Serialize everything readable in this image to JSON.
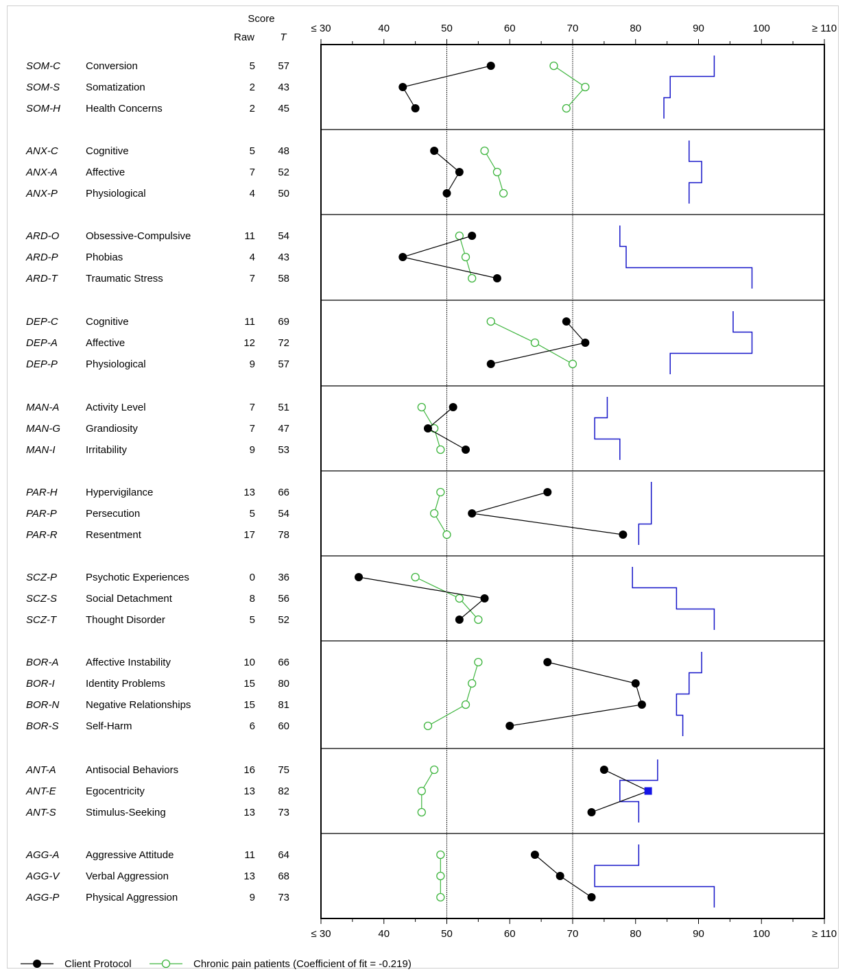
{
  "chart_data": {
    "type": "line",
    "header": {
      "score": "Score",
      "raw": "Raw",
      "t": "T"
    },
    "x_axis": {
      "min": 30,
      "max": 110,
      "ticks": [
        30,
        40,
        50,
        60,
        70,
        80,
        90,
        100,
        110
      ],
      "tick_labels": [
        "≤ 30",
        "40",
        "50",
        "60",
        "70",
        "80",
        "90",
        "100",
        "≥ 110"
      ],
      "reference_lines": [
        50,
        70
      ]
    },
    "groups": [
      {
        "rows": [
          {
            "code": "SOM-C",
            "label": "Conversion",
            "raw": "5",
            "t": 57,
            "pain": 67,
            "threshold": 92.5
          },
          {
            "code": "SOM-S",
            "label": "Somatization",
            "raw": "2",
            "t": 43,
            "pain": 72,
            "threshold": 85.5
          },
          {
            "code": "SOM-H",
            "label": "Health Concerns",
            "raw": "2",
            "t": 45,
            "pain": 69,
            "threshold": 84.5
          }
        ]
      },
      {
        "rows": [
          {
            "code": "ANX-C",
            "label": "Cognitive",
            "raw": "5",
            "t": 48,
            "pain": 56,
            "threshold": 88.5
          },
          {
            "code": "ANX-A",
            "label": "Affective",
            "raw": "7",
            "t": 52,
            "pain": 58,
            "threshold": 90.5
          },
          {
            "code": "ANX-P",
            "label": "Physiological",
            "raw": "4",
            "t": 50,
            "pain": 59,
            "threshold": 88.5
          }
        ]
      },
      {
        "rows": [
          {
            "code": "ARD-O",
            "label": "Obsessive-Compulsive",
            "raw": "11",
            "t": 54,
            "pain": 52,
            "threshold": 77.5
          },
          {
            "code": "ARD-P",
            "label": "Phobias",
            "raw": "4",
            "t": 43,
            "pain": 53,
            "threshold": 78.5
          },
          {
            "code": "ARD-T",
            "label": "Traumatic Stress",
            "raw": "7",
            "t": 58,
            "pain": 54,
            "threshold": 98.5
          }
        ]
      },
      {
        "rows": [
          {
            "code": "DEP-C",
            "label": "Cognitive",
            "raw": "11",
            "t": 69,
            "pain": 57,
            "threshold": 95.5
          },
          {
            "code": "DEP-A",
            "label": "Affective",
            "raw": "12",
            "t": 72,
            "pain": 64,
            "threshold": 98.5
          },
          {
            "code": "DEP-P",
            "label": "Physiological",
            "raw": "9",
            "t": 57,
            "pain": 70,
            "threshold": 85.5
          }
        ]
      },
      {
        "rows": [
          {
            "code": "MAN-A",
            "label": "Activity Level",
            "raw": "7",
            "t": 51,
            "pain": 46,
            "threshold": 75.5
          },
          {
            "code": "MAN-G",
            "label": "Grandiosity",
            "raw": "7",
            "t": 47,
            "pain": 48,
            "threshold": 73.5
          },
          {
            "code": "MAN-I",
            "label": "Irritability",
            "raw": "9",
            "t": 53,
            "pain": 49,
            "threshold": 77.5
          }
        ]
      },
      {
        "rows": [
          {
            "code": "PAR-H",
            "label": "Hypervigilance",
            "raw": "13",
            "t": 66,
            "pain": 49,
            "threshold": 82.5
          },
          {
            "code": "PAR-P",
            "label": "Persecution",
            "raw": "5",
            "t": 54,
            "pain": 48,
            "threshold": 82.5
          },
          {
            "code": "PAR-R",
            "label": "Resentment",
            "raw": "17",
            "t": 78,
            "pain": 50,
            "threshold": 80.5
          }
        ]
      },
      {
        "rows": [
          {
            "code": "SCZ-P",
            "label": "Psychotic Experiences",
            "raw": "0",
            "t": 36,
            "pain": 45,
            "threshold": 79.5
          },
          {
            "code": "SCZ-S",
            "label": "Social Detachment",
            "raw": "8",
            "t": 56,
            "pain": 52,
            "threshold": 86.5
          },
          {
            "code": "SCZ-T",
            "label": "Thought Disorder",
            "raw": "5",
            "t": 52,
            "pain": 55,
            "threshold": 92.5
          }
        ]
      },
      {
        "rows": [
          {
            "code": "BOR-A",
            "label": "Affective Instability",
            "raw": "10",
            "t": 66,
            "pain": 55,
            "threshold": 90.5
          },
          {
            "code": "BOR-I",
            "label": "Identity Problems",
            "raw": "15",
            "t": 80,
            "pain": 54,
            "threshold": 88.5
          },
          {
            "code": "BOR-N",
            "label": "Negative Relationships",
            "raw": "15",
            "t": 81,
            "pain": 53,
            "threshold": 86.5
          },
          {
            "code": "BOR-S",
            "label": "Self-Harm",
            "raw": "6",
            "t": 60,
            "pain": 47,
            "threshold": 87.5
          }
        ]
      },
      {
        "rows": [
          {
            "code": "ANT-A",
            "label": "Antisocial Behaviors",
            "raw": "16",
            "t": 75,
            "pain": 48,
            "threshold": 83.5
          },
          {
            "code": "ANT-E",
            "label": "Egocentricity",
            "raw": "13",
            "t": 82,
            "pain": 46,
            "threshold": 77.5,
            "flag": true
          },
          {
            "code": "ANT-S",
            "label": "Stimulus-Seeking",
            "raw": "13",
            "t": 73,
            "pain": 46,
            "threshold": 80.5
          }
        ]
      },
      {
        "rows": [
          {
            "code": "AGG-A",
            "label": "Aggressive Attitude",
            "raw": "11",
            "t": 64,
            "pain": 49,
            "threshold": 80.5
          },
          {
            "code": "AGG-V",
            "label": "Verbal Aggression",
            "raw": "13",
            "t": 68,
            "pain": 49,
            "threshold": 73.5
          },
          {
            "code": "AGG-P",
            "label": "Physical Aggression",
            "raw": "9",
            "t": 73,
            "pain": 49,
            "threshold": 92.5
          }
        ]
      }
    ],
    "legend": {
      "client": "Client Protocol",
      "comparison": "Chronic pain patients (Coefficient of fit = -0.219)"
    },
    "colors": {
      "client": "#000000",
      "comparison": "#3cb43c",
      "threshold": "#1414c8",
      "flag": "#1414e6"
    }
  }
}
